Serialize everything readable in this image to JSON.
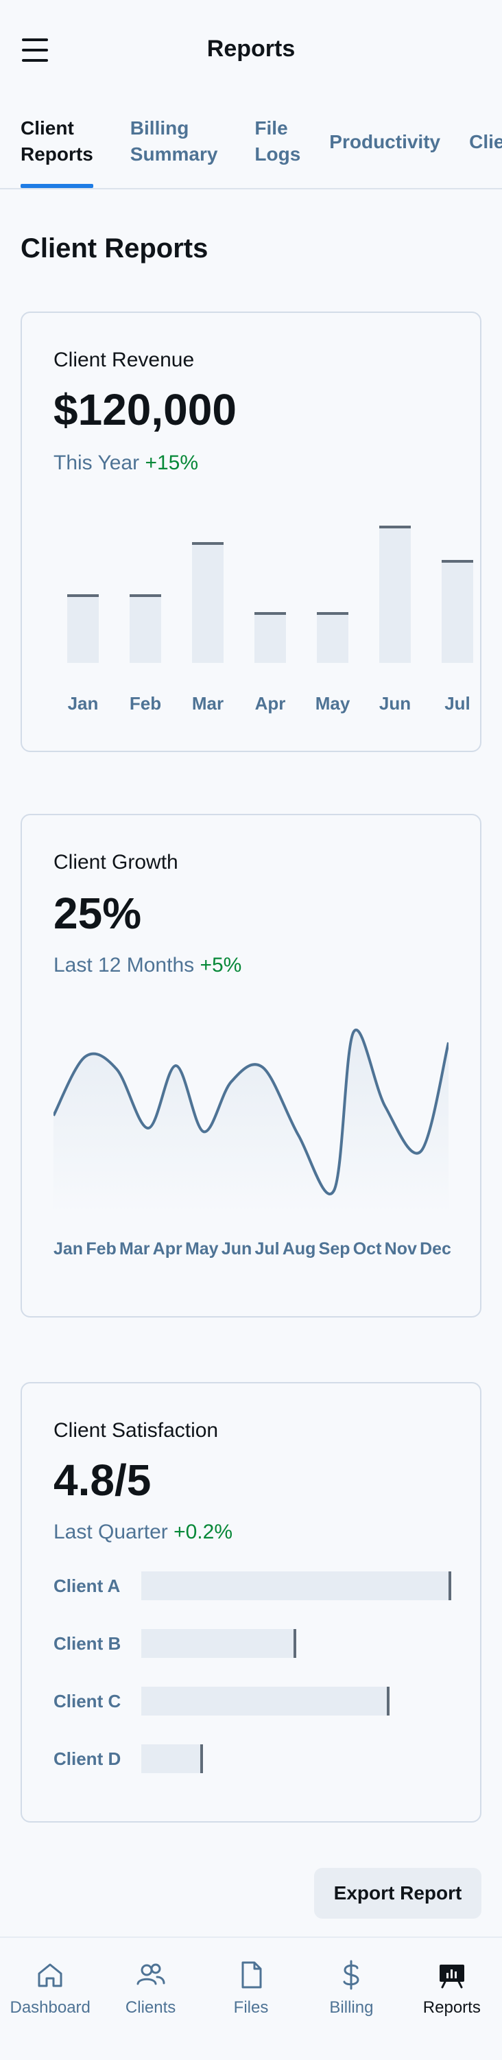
{
  "header": {
    "title": "Reports"
  },
  "tabs": [
    {
      "label": "Client Reports",
      "active": true
    },
    {
      "label": "Billing Summary",
      "active": false
    },
    {
      "label": "File Logs",
      "active": false
    },
    {
      "label": "Productivity",
      "active": false
    },
    {
      "label": "Client",
      "active": false
    }
  ],
  "page": {
    "title": "Client Reports"
  },
  "revenue": {
    "label": "Client Revenue",
    "value": "$120,000",
    "period": "This Year",
    "delta": "+15%",
    "chart_data": {
      "type": "bar",
      "categories": [
        "Jan",
        "Feb",
        "Mar",
        "Apr",
        "May",
        "Jun",
        "Jul"
      ],
      "values": [
        50,
        50,
        88,
        37,
        37,
        100,
        75
      ],
      "ylim": [
        0,
        100
      ]
    }
  },
  "growth": {
    "label": "Client Growth",
    "value": "25%",
    "period": "Last 12 Months",
    "delta": "+5%",
    "chart_data": {
      "type": "area",
      "x": [
        "Jan",
        "Feb",
        "Mar",
        "Apr",
        "May",
        "Jun",
        "Jul",
        "Aug",
        "Sep",
        "Oct",
        "Nov",
        "Dec"
      ],
      "points": [
        [
          0,
          47
        ],
        [
          8,
          80
        ],
        [
          16,
          73
        ],
        [
          24,
          40
        ],
        [
          31,
          75
        ],
        [
          38,
          38
        ],
        [
          45,
          66
        ],
        [
          53,
          74
        ],
        [
          62,
          36
        ],
        [
          71,
          5
        ],
        [
          76,
          94
        ],
        [
          84,
          52
        ],
        [
          93,
          27
        ],
        [
          100,
          88
        ]
      ],
      "ylim": [
        0,
        100
      ]
    }
  },
  "satisfaction": {
    "label": "Client Satisfaction",
    "value": "4.8/5",
    "period": "Last Quarter",
    "delta": "+0.2%",
    "chart_data": {
      "type": "bar",
      "categories": [
        "Client A",
        "Client B",
        "Client C",
        "Client D"
      ],
      "values": [
        100,
        50,
        80,
        20
      ],
      "xlim": [
        0,
        100
      ]
    }
  },
  "actions": {
    "export_label": "Export Report"
  },
  "bottom_nav": [
    {
      "label": "Dashboard",
      "icon": "home-icon",
      "active": false
    },
    {
      "label": "Clients",
      "icon": "users-icon",
      "active": false
    },
    {
      "label": "Files",
      "icon": "file-icon",
      "active": false
    },
    {
      "label": "Billing",
      "icon": "dollar-icon",
      "active": false
    },
    {
      "label": "Reports",
      "icon": "presentation-chart-icon",
      "active": true
    }
  ]
}
